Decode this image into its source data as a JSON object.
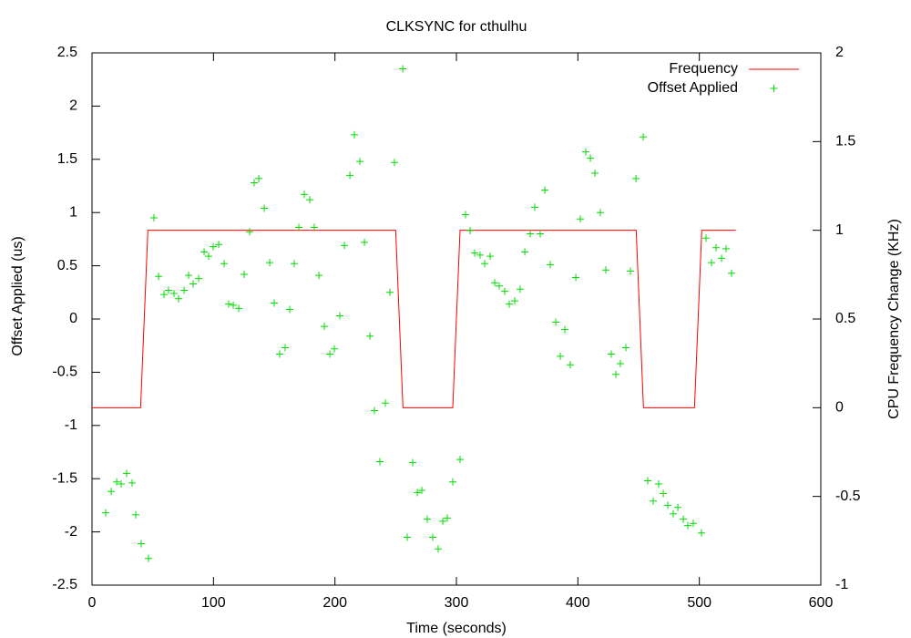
{
  "chart_data": {
    "type": "line",
    "title": "CLKSYNC for cthulhu",
    "x_label": "Time (seconds)",
    "y_label": "Offset Applied (us)",
    "y2_label": "CPU Frequency Change (KHz)",
    "xlim": [
      0,
      600
    ],
    "xticks": [
      0,
      100,
      200,
      300,
      400,
      500,
      600
    ],
    "ylim": [
      -2.5,
      2.5
    ],
    "yticks": [
      -2.5,
      -2,
      -1.5,
      -1,
      -0.5,
      0,
      0.5,
      1,
      1.5,
      2,
      2.5
    ],
    "y2lim": [
      -1,
      2
    ],
    "y2ticks": [
      -1,
      -0.5,
      0,
      0.5,
      1,
      1.5,
      2
    ],
    "legend": "top right",
    "grid": false,
    "series": [
      {
        "name": "Frequency",
        "color": "#ff0000",
        "axis": "y2",
        "style": "line",
        "x": [
          0,
          40,
          46,
          250,
          256,
          297,
          303,
          448,
          454,
          496,
          502,
          530
        ],
        "values": [
          0,
          0,
          1,
          1,
          0,
          0,
          1,
          1,
          0,
          0,
          1,
          1
        ]
      },
      {
        "name": "Offset Applied",
        "color": "#00dd00",
        "style": "points",
        "x": [
          11.3,
          15.8,
          20.3,
          24,
          28.5,
          33,
          36,
          40.5,
          46.5,
          51,
          54.8,
          59.3,
          63,
          67.5,
          71.3,
          75.8,
          79.5,
          83.3,
          87.8,
          92.3,
          96,
          99.8,
          104.3,
          108.8,
          112.5,
          116.3,
          120.8,
          125.3,
          129.8,
          133.5,
          137.3,
          141.8,
          146.3,
          150,
          154.5,
          159,
          162.8,
          166.5,
          170.3,
          174.8,
          179.3,
          183,
          186.8,
          191.3,
          195.8,
          199.5,
          204,
          207.8,
          212.3,
          216,
          220.5,
          224.3,
          228.8,
          232.5,
          237,
          241.5,
          245.3,
          249,
          255.8,
          259.5,
          264,
          267.8,
          271.5,
          276,
          280.5,
          285,
          288.8,
          292.5,
          297,
          303,
          307.5,
          311.3,
          315,
          319.5,
          323.3,
          327.8,
          331.5,
          335.3,
          339.8,
          343.5,
          348,
          352.5,
          356.3,
          360.8,
          364.5,
          369,
          372.8,
          377.3,
          381.8,
          385.5,
          389.3,
          393.8,
          398.3,
          402,
          406.5,
          410.3,
          414,
          418.5,
          423,
          427.5,
          431.3,
          435,
          439.5,
          443.3,
          447.8,
          453.8,
          457.5,
          462,
          466.5,
          470.3,
          474,
          478.5,
          482.3,
          486.8,
          490.5,
          495,
          501.8,
          505.5,
          510,
          513.8,
          518.3,
          522,
          526.5
        ],
        "values": [
          -1.82,
          -1.62,
          -1.53,
          -1.55,
          -1.45,
          -1.54,
          -1.84,
          -2.11,
          -2.25,
          0.95,
          0.4,
          0.23,
          0.27,
          0.24,
          0.19,
          0.27,
          0.41,
          0.33,
          0.38,
          0.63,
          0.59,
          0.68,
          0.7,
          0.52,
          0.14,
          0.13,
          0.1,
          0.42,
          0.82,
          1.28,
          1.32,
          1.04,
          0.53,
          0.15,
          -0.33,
          -0.27,
          0.09,
          0.52,
          0.86,
          1.17,
          1.12,
          0.86,
          0.41,
          -0.07,
          -0.33,
          -0.28,
          0.03,
          0.69,
          1.35,
          1.73,
          1.48,
          0.72,
          -0.16,
          -0.86,
          -1.34,
          -0.79,
          0.25,
          1.47,
          2.35,
          -2.05,
          -1.35,
          -1.63,
          -1.61,
          -1.88,
          -2.05,
          -2.16,
          -1.9,
          -1.87,
          -1.53,
          -1.32,
          0.98,
          0.83,
          0.62,
          0.6,
          0.52,
          0.59,
          0.34,
          0.31,
          0.26,
          0.14,
          0.17,
          0.28,
          0.63,
          0.8,
          1.05,
          0.8,
          1.21,
          0.51,
          -0.03,
          -0.35,
          -0.1,
          -0.43,
          0.39,
          0.94,
          1.57,
          1.51,
          1.37,
          1,
          0.46,
          -0.33,
          -0.52,
          -0.42,
          -0.27,
          0.45,
          1.32,
          1.71,
          -1.52,
          -1.71,
          -1.55,
          -1.64,
          -1.75,
          -1.83,
          -1.77,
          -1.88,
          -1.94,
          -1.92,
          -2.01,
          0.76,
          0.53,
          0.67,
          0.57,
          0.66,
          0.43
        ]
      }
    ]
  }
}
